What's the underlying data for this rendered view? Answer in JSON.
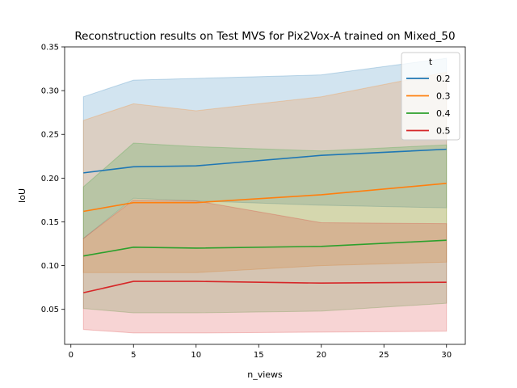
{
  "chart_data": {
    "type": "line",
    "title": "Reconstruction results on Test MVS for Pix2Vox-A trained on Mixed_50",
    "xlabel": "n_views",
    "ylabel": "IoU",
    "xlim": [
      -0.5,
      31.5
    ],
    "ylim": [
      0.01,
      0.35
    ],
    "xticks": [
      0,
      5,
      10,
      15,
      20,
      25,
      30
    ],
    "yticks": [
      0.05,
      0.1,
      0.15,
      0.2,
      0.25,
      0.3,
      0.35
    ],
    "xtick_labels": [
      "0",
      "5",
      "10",
      "15",
      "20",
      "25",
      "30"
    ],
    "ytick_labels": [
      "0.05",
      "0.10",
      "0.15",
      "0.20",
      "0.25",
      "0.30",
      "0.35"
    ],
    "x": [
      1,
      5,
      10,
      20,
      30
    ],
    "grid": false,
    "legend": {
      "title": "t",
      "placement": "top-right"
    },
    "series": [
      {
        "name": "0.2",
        "color": "#1f77b4",
        "values": [
          0.206,
          0.213,
          0.214,
          0.226,
          0.233
        ],
        "lower": [
          0.131,
          0.177,
          0.174,
          0.169,
          0.166
        ],
        "upper": [
          0.293,
          0.312,
          0.314,
          0.318,
          0.337
        ]
      },
      {
        "name": "0.3",
        "color": "#ff7f0e",
        "values": [
          0.162,
          0.172,
          0.172,
          0.181,
          0.194
        ],
        "lower": [
          0.092,
          0.092,
          0.092,
          0.1,
          0.104
        ],
        "upper": [
          0.266,
          0.285,
          0.277,
          0.293,
          0.321
        ]
      },
      {
        "name": "0.4",
        "color": "#2ca02c",
        "values": [
          0.111,
          0.121,
          0.12,
          0.122,
          0.129
        ],
        "lower": [
          0.051,
          0.046,
          0.046,
          0.048,
          0.057
        ],
        "upper": [
          0.19,
          0.24,
          0.236,
          0.231,
          0.238
        ]
      },
      {
        "name": "0.5",
        "color": "#d62728",
        "values": [
          0.069,
          0.082,
          0.082,
          0.08,
          0.081
        ],
        "lower": [
          0.027,
          0.023,
          0.023,
          0.024,
          0.025
        ],
        "upper": [
          0.131,
          0.175,
          0.174,
          0.149,
          0.148
        ]
      }
    ]
  }
}
